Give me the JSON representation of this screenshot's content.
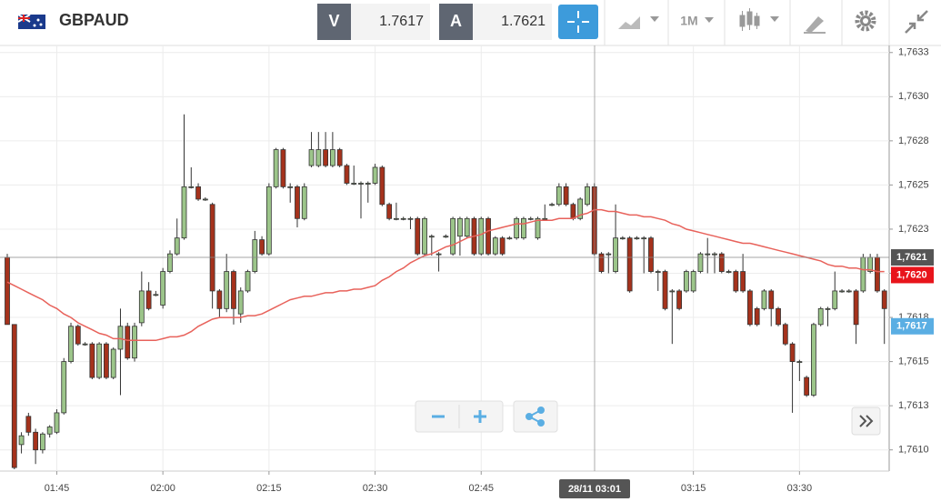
{
  "toolbar": {
    "symbol": "GBPAUD",
    "sell_label": "V",
    "sell_price": "1.7617",
    "buy_label": "A",
    "buy_price": "1.7621",
    "period": "1M"
  },
  "chart_data": {
    "type": "candlestick",
    "categories": [
      null,
      null,
      null,
      null,
      null,
      null,
      null,
      "01:45",
      null,
      null,
      null,
      null,
      null,
      null,
      null,
      null,
      null,
      null,
      null,
      null,
      null,
      null,
      "02:00",
      null,
      null,
      null,
      null,
      null,
      null,
      null,
      null,
      null,
      null,
      null,
      null,
      null,
      null,
      "02:15",
      null,
      null,
      null,
      null,
      null,
      null,
      null,
      null,
      null,
      null,
      null,
      null,
      null,
      null,
      "02:30",
      null,
      null,
      null,
      null,
      null,
      null,
      null,
      null,
      null,
      null,
      null,
      null,
      null,
      null,
      "02:45",
      null,
      null,
      null,
      null,
      null,
      null,
      null,
      null,
      null,
      null,
      null,
      null,
      null,
      null,
      null,
      null,
      null,
      null,
      null,
      null,
      null,
      null,
      null,
      null,
      null,
      null,
      null,
      null,
      null,
      "03:15",
      null,
      null,
      null,
      null,
      null,
      null,
      null,
      null,
      null,
      null,
      null,
      null,
      null,
      null,
      "03:30",
      null,
      null,
      null,
      null,
      null,
      null,
      null,
      null,
      null,
      null,
      null,
      null
    ],
    "ohlc": [
      [
        1.76209,
        1.76211,
        1.76171,
        1.76171
      ],
      [
        1.76171,
        1.76171,
        1.76089,
        1.7609
      ],
      [
        1.76103,
        1.7611,
        1.76098,
        1.76108
      ],
      [
        1.76119,
        1.76121,
        1.76108,
        1.7611
      ],
      [
        1.7611,
        1.76112,
        1.76092,
        1.761
      ],
      [
        1.761,
        1.7611,
        1.76098,
        1.76109
      ],
      [
        1.76109,
        1.76114,
        1.76107,
        1.76113
      ],
      [
        1.7611,
        1.76123,
        1.76109,
        1.76121
      ],
      [
        1.76121,
        1.76152,
        1.7612,
        1.7615
      ],
      [
        1.7615,
        1.76172,
        1.76149,
        1.7617
      ],
      [
        1.7617,
        1.76171,
        1.76159,
        1.7616
      ],
      [
        1.7616,
        1.76161,
        1.76159,
        1.7616
      ],
      [
        1.7616,
        1.76161,
        1.7614,
        1.76141
      ],
      [
        1.76141,
        1.76161,
        1.7614,
        1.7616
      ],
      [
        1.7616,
        1.76161,
        1.7614,
        1.76141
      ],
      [
        1.76141,
        1.76158,
        1.7614,
        1.76157
      ],
      [
        1.76157,
        1.7618,
        1.76131,
        1.7617
      ],
      [
        1.7617,
        1.76172,
        1.76151,
        1.76152
      ],
      [
        1.76152,
        1.76172,
        1.7615,
        1.7617
      ],
      [
        1.76172,
        1.76201,
        1.7617,
        1.7619
      ],
      [
        1.7619,
        1.76195,
        1.76179,
        1.7618
      ],
      [
        1.76188,
        1.7619,
        1.76187,
        1.76188
      ],
      [
        1.76182,
        1.76203,
        1.7618,
        1.76201
      ],
      [
        1.76201,
        1.76213,
        1.762,
        1.76211
      ],
      [
        1.76211,
        1.76231,
        1.7621,
        1.7622
      ],
      [
        1.7622,
        1.7629,
        1.76219,
        1.76249
      ],
      [
        1.76249,
        1.7626,
        1.76248,
        1.76249
      ],
      [
        1.76249,
        1.76251,
        1.76241,
        1.76242
      ],
      [
        1.76242,
        1.76243,
        1.76241,
        1.76242
      ],
      [
        1.76239,
        1.7624,
        1.7618,
        1.7619
      ],
      [
        1.7619,
        1.76191,
        1.76175,
        1.7618
      ],
      [
        1.7618,
        1.76211,
        1.76178,
        1.76201
      ],
      [
        1.76201,
        1.76202,
        1.76171,
        1.7618
      ],
      [
        1.76177,
        1.76192,
        1.76172,
        1.7619
      ],
      [
        1.7619,
        1.76202,
        1.76189,
        1.76201
      ],
      [
        1.76201,
        1.76224,
        1.762,
        1.76219
      ],
      [
        1.76219,
        1.76221,
        1.7621,
        1.76211
      ],
      [
        1.76211,
        1.76251,
        1.7621,
        1.76249
      ],
      [
        1.76249,
        1.76271,
        1.76248,
        1.7627
      ],
      [
        1.7627,
        1.76271,
        1.76248,
        1.76249
      ],
      [
        1.76249,
        1.76251,
        1.7624,
        1.76249
      ],
      [
        1.76249,
        1.7625,
        1.76226,
        1.76231
      ],
      [
        1.76231,
        1.76251,
        1.7623,
        1.76249
      ],
      [
        1.76261,
        1.7628,
        1.7626,
        1.7627
      ],
      [
        1.76261,
        1.7628,
        1.7626,
        1.7627
      ],
      [
        1.7627,
        1.7628,
        1.7626,
        1.76261
      ],
      [
        1.76261,
        1.7628,
        1.7626,
        1.7627
      ],
      [
        1.7627,
        1.76271,
        1.7626,
        1.76261
      ],
      [
        1.76261,
        1.76262,
        1.7625,
        1.76251
      ],
      [
        1.76251,
        1.76261,
        1.7625,
        1.76251
      ],
      [
        1.76251,
        1.76252,
        1.76231,
        1.76251
      ],
      [
        1.76251,
        1.76252,
        1.7624,
        1.76251
      ],
      [
        1.76251,
        1.76262,
        1.7625,
        1.7626
      ],
      [
        1.7626,
        1.76261,
        1.76238,
        1.76239
      ],
      [
        1.76239,
        1.7624,
        1.7623,
        1.76231
      ],
      [
        1.76231,
        1.7624,
        1.7623,
        1.76231
      ],
      [
        1.76231,
        1.76232,
        1.7623,
        1.76231
      ],
      [
        1.76231,
        1.76232,
        1.76225,
        1.76231
      ],
      [
        1.76231,
        1.76232,
        1.7621,
        1.76211
      ],
      [
        1.76211,
        1.76232,
        1.7621,
        1.76231
      ],
      [
        1.76221,
        1.76222,
        1.7621,
        1.76221
      ],
      [
        1.76211,
        1.76212,
        1.76201,
        1.76211
      ],
      [
        1.76221,
        1.76222,
        1.7622,
        1.76221
      ],
      [
        1.76211,
        1.76232,
        1.7621,
        1.76231
      ],
      [
        1.76221,
        1.76232,
        1.7621,
        1.76231
      ],
      [
        1.76221,
        1.76232,
        1.7622,
        1.76231
      ],
      [
        1.76231,
        1.76232,
        1.7621,
        1.76211
      ],
      [
        1.76211,
        1.76232,
        1.7621,
        1.76231
      ],
      [
        1.76231,
        1.76232,
        1.7621,
        1.76211
      ],
      [
        1.76211,
        1.76221,
        1.7621,
        1.7622
      ],
      [
        1.7622,
        1.76221,
        1.7621,
        1.76211
      ],
      [
        1.7622,
        1.76221,
        1.76219,
        1.7622
      ],
      [
        1.7622,
        1.76232,
        1.76219,
        1.76231
      ],
      [
        1.7622,
        1.76232,
        1.76219,
        1.76231
      ],
      [
        1.76231,
        1.76232,
        1.7623,
        1.76231
      ],
      [
        1.7622,
        1.76232,
        1.76219,
        1.76231
      ],
      [
        1.76231,
        1.76239,
        1.7623,
        1.76231
      ],
      [
        1.76239,
        1.7624,
        1.76238,
        1.76239
      ],
      [
        1.76239,
        1.76251,
        1.76238,
        1.76249
      ],
      [
        1.76249,
        1.76251,
        1.76238,
        1.76239
      ],
      [
        1.76239,
        1.7624,
        1.7623,
        1.76231
      ],
      [
        1.76231,
        1.76243,
        1.7623,
        1.76242
      ],
      [
        1.76239,
        1.76251,
        1.76238,
        1.76249
      ],
      [
        1.76249,
        1.76251,
        1.7621,
        1.76211
      ],
      [
        1.76211,
        1.76212,
        1.762,
        1.76201
      ],
      [
        1.76211,
        1.76212,
        1.762,
        1.76211
      ],
      [
        1.76201,
        1.76239,
        1.762,
        1.7622
      ],
      [
        1.7622,
        1.76221,
        1.76219,
        1.7622
      ],
      [
        1.7622,
        1.76221,
        1.76189,
        1.7619
      ],
      [
        1.7622,
        1.76221,
        1.76219,
        1.7622
      ],
      [
        1.7622,
        1.76221,
        1.762,
        1.7622
      ],
      [
        1.7622,
        1.76221,
        1.762,
        1.76201
      ],
      [
        1.76201,
        1.76202,
        1.7619,
        1.76201
      ],
      [
        1.76201,
        1.76202,
        1.76179,
        1.7618
      ],
      [
        1.7619,
        1.76191,
        1.7616,
        1.7619
      ],
      [
        1.7619,
        1.76191,
        1.76179,
        1.7618
      ],
      [
        1.7619,
        1.76202,
        1.76189,
        1.76201
      ],
      [
        1.7619,
        1.76202,
        1.76189,
        1.76201
      ],
      [
        1.76201,
        1.76212,
        1.762,
        1.76211
      ],
      [
        1.76211,
        1.7622,
        1.762,
        1.76211
      ],
      [
        1.76211,
        1.76212,
        1.762,
        1.76211
      ],
      [
        1.76211,
        1.76212,
        1.762,
        1.76201
      ],
      [
        1.76201,
        1.76202,
        1.762,
        1.76201
      ],
      [
        1.76201,
        1.76202,
        1.76189,
        1.7619
      ],
      [
        1.76201,
        1.76211,
        1.76189,
        1.7619
      ],
      [
        1.7619,
        1.76191,
        1.7617,
        1.76171
      ],
      [
        1.7618,
        1.76181,
        1.7617,
        1.76171
      ],
      [
        1.7618,
        1.76191,
        1.76179,
        1.7619
      ],
      [
        1.7619,
        1.76191,
        1.7617,
        1.7618
      ],
      [
        1.7618,
        1.76181,
        1.7617,
        1.76171
      ],
      [
        1.76171,
        1.76172,
        1.76159,
        1.7616
      ],
      [
        1.7616,
        1.76161,
        1.76121,
        1.7615
      ],
      [
        1.7615,
        1.76151,
        1.76139,
        1.7615
      ],
      [
        1.76141,
        1.76142,
        1.7613,
        1.76131
      ],
      [
        1.76131,
        1.76172,
        1.7613,
        1.76171
      ],
      [
        1.76171,
        1.76181,
        1.7617,
        1.7618
      ],
      [
        1.7618,
        1.76181,
        1.7617,
        1.7618
      ],
      [
        1.7618,
        1.76201,
        1.76179,
        1.7619
      ],
      [
        1.7619,
        1.76191,
        1.76189,
        1.7619
      ],
      [
        1.7619,
        1.76191,
        1.76189,
        1.7619
      ],
      [
        1.7619,
        1.76191,
        1.7616,
        1.76171
      ],
      [
        1.7619,
        1.76211,
        1.76189,
        1.76209
      ],
      [
        1.76201,
        1.76211,
        1.762,
        1.76209
      ],
      [
        1.76209,
        1.76211,
        1.76189,
        1.7619
      ],
      [
        1.7619,
        1.76191,
        1.7616,
        1.7618
      ]
    ],
    "up_color": "#9cc58a",
    "down_color": "#a5321c",
    "ma": {
      "color": "#e8625b",
      "values": [
        1.76195,
        1.76193,
        1.76191,
        1.76189,
        1.76187,
        1.76185,
        1.76182,
        1.7618,
        1.76177,
        1.76175,
        1.76172,
        1.7617,
        1.76168,
        1.76166,
        1.76165,
        1.76163,
        1.76163,
        1.76162,
        1.76162,
        1.76162,
        1.76162,
        1.76162,
        1.76163,
        1.76164,
        1.76164,
        1.76165,
        1.76167,
        1.7617,
        1.76172,
        1.76174,
        1.76175,
        1.76175,
        1.76175,
        1.76175,
        1.76176,
        1.76176,
        1.76177,
        1.76179,
        1.76181,
        1.76183,
        1.76185,
        1.76186,
        1.76187,
        1.76187,
        1.76188,
        1.76189,
        1.76189,
        1.7619,
        1.7619,
        1.76191,
        1.76191,
        1.76192,
        1.76193,
        1.76196,
        1.76198,
        1.76201,
        1.76203,
        1.76206,
        1.76208,
        1.7621,
        1.76211,
        1.76213,
        1.76215,
        1.76216,
        1.76218,
        1.7622,
        1.76221,
        1.76222,
        1.76224,
        1.76225,
        1.76226,
        1.76227,
        1.76228,
        1.76228,
        1.76229,
        1.7623,
        1.7623,
        1.7623,
        1.76231,
        1.76231,
        1.76231,
        1.76233,
        1.76234,
        1.76236,
        1.76236,
        1.76235,
        1.76235,
        1.76234,
        1.76233,
        1.76233,
        1.76232,
        1.76232,
        1.76231,
        1.7623,
        1.76228,
        1.76227,
        1.76225,
        1.76224,
        1.76223,
        1.76222,
        1.76221,
        1.7622,
        1.76219,
        1.76218,
        1.76217,
        1.76217,
        1.76216,
        1.76215,
        1.76214,
        1.76213,
        1.76212,
        1.76211,
        1.7621,
        1.76209,
        1.76208,
        1.76207,
        1.76205,
        1.76204,
        1.76204,
        1.76203,
        1.76203,
        1.76202,
        1.76202,
        1.76201,
        1.76201
      ]
    },
    "ylim": [
      1.76088,
      1.76329
    ],
    "yticks": [
      {
        "value": 1.761,
        "label": "1,7610"
      },
      {
        "value": 1.76125,
        "label": "1,7613"
      },
      {
        "value": 1.7615,
        "label": "1,7615"
      },
      {
        "value": 1.76175,
        "label": "1,7618"
      },
      {
        "value": 1.762,
        "label": "1,7620"
      },
      {
        "value": 1.76225,
        "label": "1,7623"
      },
      {
        "value": 1.7625,
        "label": "1,7625"
      },
      {
        "value": 1.76275,
        "label": "1,7628"
      },
      {
        "value": 1.763,
        "label": "1,7630"
      },
      {
        "value": 1.76325,
        "label": "1,7633"
      }
    ],
    "grid": true,
    "crosshair": {
      "time_label": "28/11 03:01",
      "price": {
        "value": 1.76209,
        "label": "1,7621"
      }
    },
    "price_tags": [
      {
        "value": 1.76199,
        "label": "1,7620",
        "color": "#e8141b"
      },
      {
        "value": 1.7617,
        "label": "1,7617",
        "color": "#5aaee3"
      }
    ]
  }
}
